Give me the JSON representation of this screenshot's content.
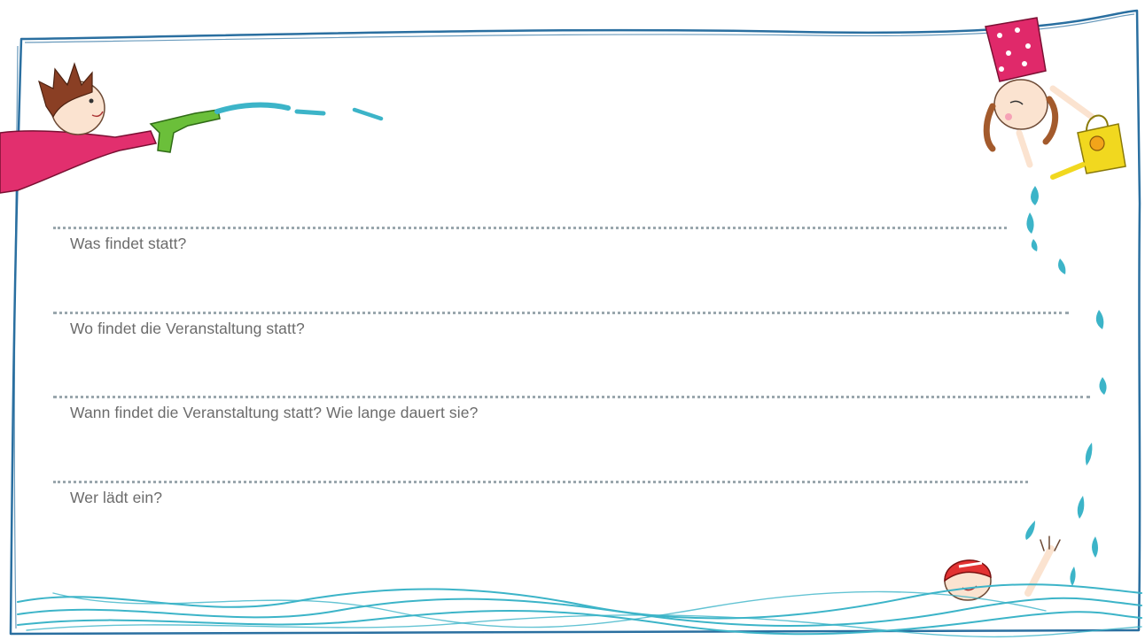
{
  "form": {
    "fields": [
      {
        "label": "Was findet statt?"
      },
      {
        "label": "Wo findet die Veranstaltung statt?"
      },
      {
        "label": "Wann findet die Veranstaltung statt? Wie lange dauert sie?"
      },
      {
        "label": "Wer lädt ein?"
      }
    ]
  },
  "illustrations": [
    "boy-with-water-pistol",
    "girl-with-watering-can",
    "water-drops",
    "swimmer-in-red-cap",
    "water-waves"
  ],
  "colors": {
    "frame": "#2a6fa0",
    "water": "#3cb4c8",
    "dotted_line": "#9aa7ad",
    "label_text": "#6b6b6b"
  }
}
